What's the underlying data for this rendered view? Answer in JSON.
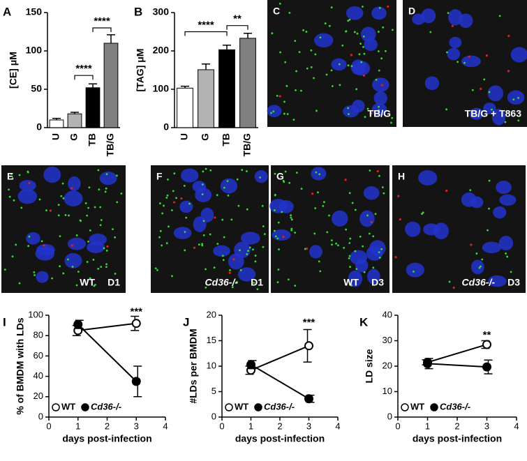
{
  "chart_data": [
    {
      "type": "bar",
      "panel": "A",
      "ylabel": "[CE] μM",
      "categories": [
        "U",
        "G",
        "TB",
        "TB/G"
      ],
      "values": [
        10,
        18,
        52,
        110
      ],
      "errors": [
        2,
        2,
        5,
        11
      ],
      "colors": [
        "#ffffff",
        "#b3b3b3",
        "#000000",
        "#808080"
      ],
      "ylim": [
        0,
        150
      ],
      "yticks": [
        0,
        50,
        100,
        150
      ],
      "annotations": [
        {
          "text": "****",
          "x": [
            "G",
            "TB"
          ],
          "y": 68
        },
        {
          "text": "****",
          "x": [
            "TB",
            "TB/G"
          ],
          "y": 130
        }
      ]
    },
    {
      "type": "bar",
      "panel": "B",
      "ylabel": "[TAG] μM",
      "categories": [
        "U",
        "G",
        "TB",
        "TB/G"
      ],
      "values": [
        103,
        151,
        203,
        233
      ],
      "errors": [
        5,
        15,
        12,
        13
      ],
      "colors": [
        "#ffffff",
        "#b3b3b3",
        "#000000",
        "#808080"
      ],
      "ylim": [
        0,
        300
      ],
      "yticks": [
        0,
        100,
        200,
        300
      ],
      "annotations": [
        {
          "text": "****",
          "x": [
            "U",
            "TB"
          ],
          "y": 250
        },
        {
          "text": "**",
          "x": [
            "TB",
            "TB/G"
          ],
          "y": 266
        }
      ]
    },
    {
      "type": "line",
      "panel": "I",
      "ylabel": "% of BMDM with LDs",
      "xlabel": "days post-infection",
      "series": [
        {
          "name": "WT",
          "marker": "open",
          "x": [
            1,
            3
          ],
          "values": [
            85,
            92
          ],
          "errors": [
            5,
            7
          ]
        },
        {
          "name": "Cd36-/-",
          "marker": "filled",
          "x": [
            1,
            3
          ],
          "values": [
            91,
            35
          ],
          "errors": [
            4,
            15
          ]
        }
      ],
      "xlim": [
        0,
        4
      ],
      "xticks": [
        0,
        1,
        2,
        3,
        4
      ],
      "ylim": [
        0,
        100
      ],
      "yticks": [
        0,
        20,
        40,
        60,
        80,
        100
      ],
      "annotations": [
        {
          "text": "***",
          "x": 3,
          "y": 103
        }
      ]
    },
    {
      "type": "line",
      "panel": "J",
      "ylabel": "#LDs per BMDM",
      "xlabel": "days post-infection",
      "series": [
        {
          "name": "WT",
          "marker": "open",
          "x": [
            1,
            3
          ],
          "values": [
            9.2,
            14
          ],
          "errors": [
            0.8,
            3.2
          ]
        },
        {
          "name": "Cd36-/-",
          "marker": "filled",
          "x": [
            1,
            3
          ],
          "values": [
            10.3,
            3.6
          ],
          "errors": [
            0.8,
            0.7
          ]
        }
      ],
      "xlim": [
        0,
        4
      ],
      "xticks": [
        0,
        1,
        2,
        3,
        4
      ],
      "ylim": [
        0,
        20
      ],
      "yticks": [
        0,
        5,
        10,
        15,
        20
      ],
      "annotations": [
        {
          "text": "***",
          "x": 3,
          "y": 18.5
        }
      ]
    },
    {
      "type": "line",
      "panel": "K",
      "ylabel": "LD size",
      "xlabel": "days post-infection",
      "series": [
        {
          "name": "WT",
          "marker": "open",
          "x": [
            1,
            3
          ],
          "values": [
            21.5,
            28.5
          ],
          "errors": [
            1,
            1.5
          ]
        },
        {
          "name": "Cd36-/-",
          "marker": "filled",
          "x": [
            1,
            3
          ],
          "values": [
            21,
            19.7
          ],
          "errors": [
            2,
            2.7
          ]
        }
      ],
      "xlim": [
        0,
        4
      ],
      "xticks": [
        0,
        1,
        2,
        3,
        4
      ],
      "ylim": [
        0,
        40
      ],
      "yticks": [
        0,
        10,
        20,
        30,
        40
      ],
      "annotations": [
        {
          "text": "**",
          "x": 3,
          "y": 32
        }
      ]
    }
  ],
  "images": [
    {
      "label": "C",
      "captions": [
        "TB/G"
      ]
    },
    {
      "label": "D",
      "captions": [
        "TB/G + T863"
      ]
    },
    {
      "label": "E",
      "captions": [
        "WT",
        "D1"
      ]
    },
    {
      "label": "F",
      "captions": [
        "Cd36-/-",
        "D1"
      ]
    },
    {
      "label": "G",
      "captions": [
        "WT",
        "D3"
      ]
    },
    {
      "label": "H",
      "captions": [
        "Cd36-/-",
        "D3"
      ]
    }
  ]
}
